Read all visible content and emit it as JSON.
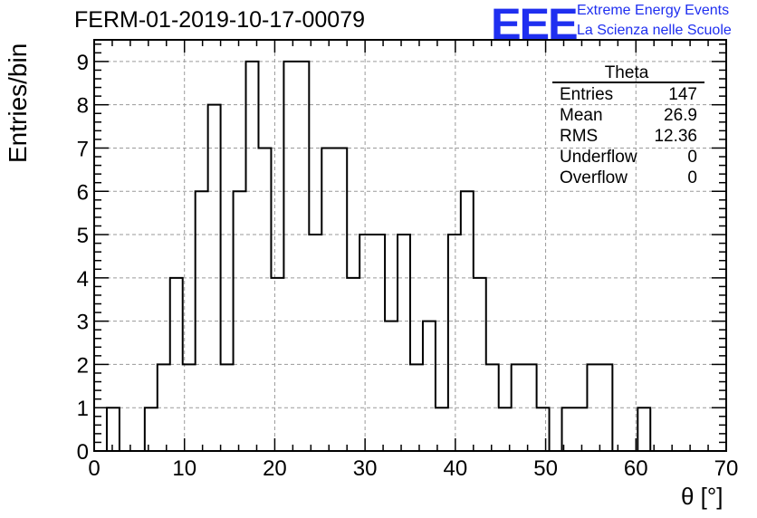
{
  "header": {
    "title": "FERM-01-2019-10-17-00079",
    "logo_text": "EEE",
    "logo_line1": "Extreme Energy Events",
    "logo_line2": "La Scienza nelle Scuole",
    "logo_color": "#1f2ff0"
  },
  "stats": {
    "name": "Theta",
    "rows": [
      {
        "label": "Entries",
        "value": "147"
      },
      {
        "label": "Mean",
        "value": "26.9"
      },
      {
        "label": "RMS",
        "value": "12.36"
      },
      {
        "label": "Underflow",
        "value": "0"
      },
      {
        "label": "Overflow",
        "value": "0"
      }
    ]
  },
  "chart_data": {
    "type": "histogram",
    "title": "FERM-01-2019-10-17-00079",
    "xlabel": "θ [°]",
    "ylabel": "Entries/bin",
    "xlim": [
      0,
      70
    ],
    "ylim": [
      0,
      9.5
    ],
    "x_ticks": [
      0,
      10,
      20,
      30,
      40,
      50,
      60,
      70
    ],
    "y_ticks": [
      0,
      1,
      2,
      3,
      4,
      5,
      6,
      7,
      8,
      9
    ],
    "grid": true,
    "bin_start": 1.4,
    "bin_width": 1.4,
    "counts": [
      1,
      0,
      0,
      1,
      2,
      4,
      2,
      6,
      8,
      2,
      6,
      9,
      7,
      4,
      9,
      9,
      5,
      7,
      7,
      4,
      5,
      5,
      3,
      5,
      2,
      3,
      1,
      5,
      6,
      4,
      2,
      1,
      2,
      2,
      1,
      0,
      1,
      1,
      2,
      2,
      0,
      0,
      1
    ]
  }
}
